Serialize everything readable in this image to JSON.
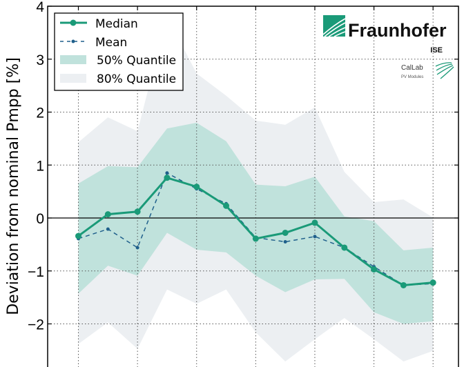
{
  "chart_data": {
    "type": "line",
    "title": "",
    "xlabel": "",
    "ylabel": "Deviation from nominal Pmpp [%]",
    "x": [
      0,
      1,
      2,
      3,
      4,
      5,
      6,
      7,
      8,
      9,
      10,
      11,
      12
    ],
    "xlim": [
      -1.04,
      12.86
    ],
    "ylim": [
      -2.82,
      4
    ],
    "yticks": [
      4,
      3,
      2,
      1,
      0,
      -1,
      -2
    ],
    "ytick_labels": [
      "4",
      "3",
      "2",
      "1",
      "0",
      "−1",
      "−2"
    ],
    "xgrid": [
      0,
      2,
      4,
      6,
      8,
      10,
      12
    ],
    "grid": true,
    "legend_position": "top-left",
    "series": [
      {
        "name": "Median",
        "style": "solid-marker",
        "color": "#1a9a78",
        "values": [
          -0.34,
          0.07,
          0.12,
          0.76,
          0.59,
          0.23,
          -0.39,
          -0.28,
          -0.09,
          -0.56,
          -0.97,
          -1.27,
          -1.22
        ]
      },
      {
        "name": "Mean",
        "style": "dashed-marker",
        "color": "#1f5f8b",
        "values": [
          -0.39,
          -0.21,
          -0.56,
          0.85,
          0.55,
          0.27,
          -0.37,
          -0.45,
          -0.35,
          -0.56,
          -0.92,
          -1.27,
          -1.24
        ]
      }
    ],
    "bands": [
      {
        "name": "80% Quantile",
        "color": "#eceff2",
        "upper": [
          1.43,
          1.9,
          1.64,
          3.81,
          2.73,
          2.31,
          1.84,
          1.76,
          2.09,
          0.87,
          0.3,
          0.35,
          0.01
        ],
        "lower": [
          -2.38,
          -1.97,
          -2.47,
          -1.35,
          -1.62,
          -1.35,
          -2.16,
          -2.71,
          -2.29,
          -1.89,
          -2.29,
          -2.71,
          -2.51
        ]
      },
      {
        "name": "50% Quantile",
        "color": "#c0e2dc",
        "upper": [
          0.65,
          0.98,
          0.96,
          1.69,
          1.8,
          1.45,
          0.63,
          0.6,
          0.78,
          0.03,
          -0.06,
          -0.61,
          -0.56
        ],
        "lower": [
          -1.43,
          -0.9,
          -1.09,
          -0.28,
          -0.6,
          -0.65,
          -1.09,
          -1.4,
          -1.16,
          -1.15,
          -1.78,
          -2.0,
          -1.95
        ]
      }
    ]
  },
  "logos": {
    "fraunhofer": "Fraunhofer",
    "ise": "ISE",
    "callab": "CalLab",
    "callab_sub": "PV Modules",
    "brand_color": "#1a9a78"
  }
}
